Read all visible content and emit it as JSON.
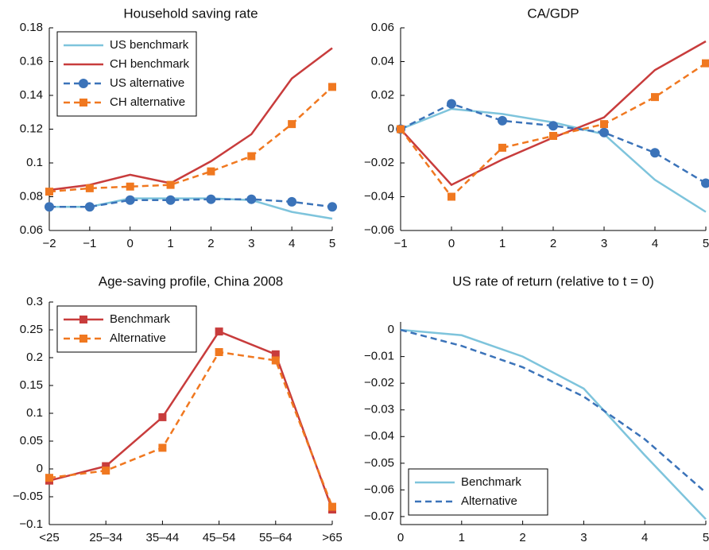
{
  "chart_data": [
    {
      "type": "line",
      "title": "Household saving rate",
      "x": [
        -2,
        -1,
        0,
        1,
        2,
        3,
        4,
        5
      ],
      "xlim": [
        -2,
        5
      ],
      "xticks": [
        {
          "value": -2,
          "label": "−2"
        },
        {
          "value": -1,
          "label": "−1"
        },
        0,
        1,
        2,
        3,
        4,
        5
      ],
      "ylim": [
        0.06,
        0.18
      ],
      "yticks": [
        0.06,
        0.08,
        0.1,
        0.12,
        0.14,
        0.16,
        0.18
      ],
      "legend": "upper left",
      "series": [
        {
          "name": "US benchmark",
          "color": "#7ec4dc",
          "values": [
            0.074,
            0.074,
            0.079,
            0.079,
            0.079,
            0.078,
            0.071,
            0.067
          ]
        },
        {
          "name": "CH benchmark",
          "color": "#c83c3c",
          "values": [
            0.084,
            0.087,
            0.093,
            0.088,
            0.101,
            0.117,
            0.15,
            0.168
          ]
        },
        {
          "name": "US alternative",
          "color": "#3b73b9",
          "dash": true,
          "marker": "circle",
          "values": [
            0.074,
            0.074,
            0.078,
            0.078,
            0.0785,
            0.0785,
            0.077,
            0.074
          ]
        },
        {
          "name": "CH alternative",
          "color": "#f07820",
          "dash": true,
          "marker": "square",
          "values": [
            0.083,
            0.085,
            0.086,
            0.087,
            0.095,
            0.104,
            0.123,
            0.145
          ]
        }
      ]
    },
    {
      "type": "line",
      "title": "CA/GDP",
      "x": [
        -1,
        0,
        1,
        2,
        3,
        4,
        5
      ],
      "xlim": [
        -1,
        5
      ],
      "xticks": [
        {
          "value": -1,
          "label": "−1"
        },
        0,
        1,
        2,
        3,
        4,
        5
      ],
      "ylim": [
        -0.06,
        0.06
      ],
      "yticks": [
        {
          "value": -0.06,
          "label": "−0.06"
        },
        {
          "value": -0.04,
          "label": "−0.04"
        },
        {
          "value": -0.02,
          "label": "−0.02"
        },
        0,
        0.02,
        0.04,
        0.06
      ],
      "series": [
        {
          "color": "#7ec4dc",
          "values": [
            0,
            0.012,
            0.009,
            0.004,
            -0.003,
            -0.03,
            -0.049
          ]
        },
        {
          "color": "#c83c3c",
          "values": [
            0,
            -0.033,
            -0.018,
            -0.005,
            0.007,
            0.035,
            0.052
          ]
        },
        {
          "color": "#3b73b9",
          "dash": true,
          "marker": "circle",
          "values": [
            0,
            0.015,
            0.005,
            0.002,
            -0.002,
            -0.014,
            -0.032
          ]
        },
        {
          "color": "#f07820",
          "dash": true,
          "marker": "square",
          "values": [
            0,
            -0.04,
            -0.011,
            -0.004,
            0.003,
            0.019,
            0.039
          ]
        }
      ]
    },
    {
      "type": "line",
      "title": "Age-saving profile, China 2008",
      "categories": [
        "<25",
        "25–34",
        "35–44",
        "45–54",
        "55–64",
        ">65"
      ],
      "ylim": [
        -0.1,
        0.3
      ],
      "yticks": [
        {
          "value": -0.1,
          "label": "−0.1"
        },
        {
          "value": -0.05,
          "label": "−0.05"
        },
        0,
        0.05,
        0.1,
        0.15,
        0.2,
        0.25,
        0.3
      ],
      "legend": "upper left",
      "series": [
        {
          "name": "Benchmark",
          "color": "#c83c3c",
          "marker": "square",
          "values": [
            -0.021,
            0.005,
            0.093,
            0.247,
            0.206,
            -0.073
          ]
        },
        {
          "name": "Alternative",
          "color": "#f07820",
          "dash": true,
          "marker": "square",
          "values": [
            -0.016,
            -0.003,
            0.038,
            0.21,
            0.195,
            -0.068
          ]
        }
      ]
    },
    {
      "type": "line",
      "title": "US rate of return (relative to t = 0)",
      "x": [
        0,
        1,
        2,
        3,
        4,
        5
      ],
      "xlim": [
        0,
        5
      ],
      "xticks": [
        0,
        1,
        2,
        3,
        4,
        5
      ],
      "ylim": [
        -0.073,
        0.003
      ],
      "yticks": [
        0,
        {
          "value": -0.01,
          "label": "−0.01"
        },
        {
          "value": -0.02,
          "label": "−0.02"
        },
        {
          "value": -0.03,
          "label": "−0.03"
        },
        {
          "value": -0.04,
          "label": "−0.04"
        },
        {
          "value": -0.05,
          "label": "−0.05"
        },
        {
          "value": -0.06,
          "label": "−0.06"
        },
        {
          "value": -0.07,
          "label": "−0.07"
        }
      ],
      "legend": "lower left",
      "series": [
        {
          "name": "Benchmark",
          "color": "#7ec4dc",
          "values": [
            0,
            -0.002,
            -0.01,
            -0.022,
            -0.047,
            -0.071
          ]
        },
        {
          "name": "Alternative",
          "color": "#3b73b9",
          "dash": true,
          "values": [
            0,
            -0.006,
            -0.014,
            -0.025,
            -0.041,
            -0.061
          ]
        }
      ]
    }
  ]
}
